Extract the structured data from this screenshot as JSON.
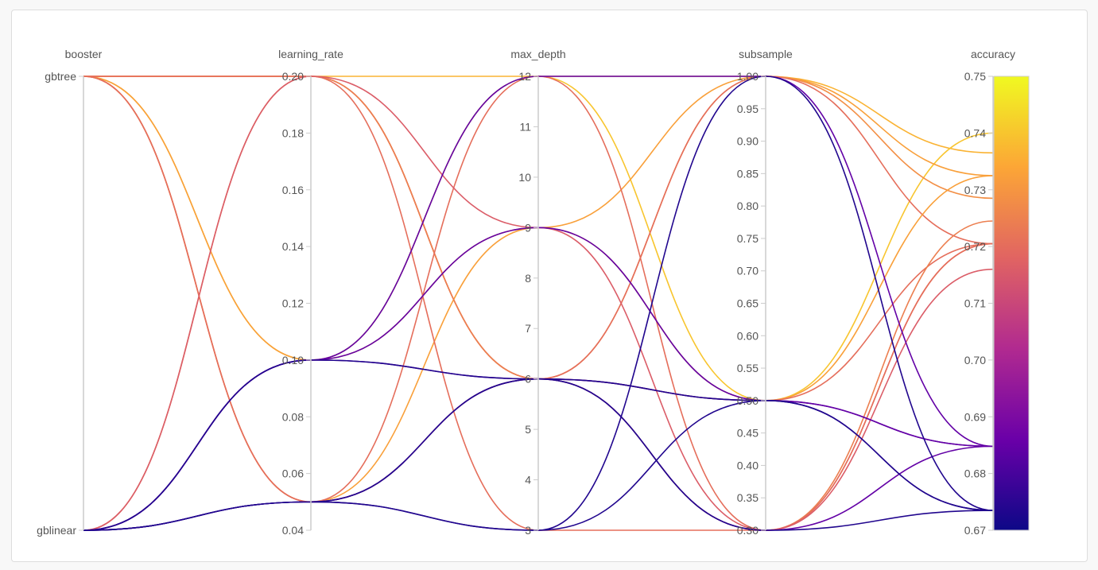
{
  "chart_data": {
    "type": "parallel_coordinates",
    "axes": [
      {
        "name": "booster",
        "type": "categorical",
        "categories": [
          "gbtree",
          "gblinear"
        ]
      },
      {
        "name": "learning_rate",
        "type": "numeric",
        "range": [
          0.04,
          0.2
        ],
        "ticks": [
          "0.04",
          "0.06",
          "0.08",
          "0.10",
          "0.12",
          "0.14",
          "0.16",
          "0.18",
          "0.20"
        ]
      },
      {
        "name": "max_depth",
        "type": "numeric",
        "range": [
          3,
          12
        ],
        "ticks": [
          "3",
          "4",
          "5",
          "6",
          "7",
          "8",
          "9",
          "10",
          "11",
          "12"
        ]
      },
      {
        "name": "subsample",
        "type": "numeric",
        "range": [
          0.3,
          1.0
        ],
        "ticks": [
          "0.30",
          "0.35",
          "0.40",
          "0.45",
          "0.50",
          "0.55",
          "0.60",
          "0.65",
          "0.70",
          "0.75",
          "0.80",
          "0.85",
          "0.90",
          "0.95",
          "1.00"
        ]
      },
      {
        "name": "accuracy",
        "type": "numeric",
        "range": [
          0.67,
          0.75
        ],
        "ticks": [
          "0.67",
          "0.68",
          "0.69",
          "0.70",
          "0.71",
          "0.72",
          "0.73",
          "0.74",
          "0.75"
        ]
      }
    ],
    "color_by": "accuracy",
    "colorscale": "plasma",
    "colorscale_colors": [
      "#0d0887",
      "#6a00a8",
      "#b12a90",
      "#e16462",
      "#fca636",
      "#f0f921"
    ],
    "runs": [
      [
        "gbtree",
        0.2,
        12,
        1.0,
        0.7365
      ],
      [
        "gbtree",
        0.1,
        12,
        0.5,
        0.74
      ],
      [
        "gbtree",
        0.1,
        9,
        1.0,
        0.7325
      ],
      [
        "gbtree",
        0.2,
        6,
        1.0,
        0.7285
      ],
      [
        "gbtree",
        0.2,
        6,
        1.0,
        0.7205
      ],
      [
        "gbtree",
        0.05,
        9,
        0.5,
        0.7325
      ],
      [
        "gbtree",
        0.05,
        6,
        0.5,
        0.7205
      ],
      [
        "gblinear",
        0.2,
        6,
        0.3,
        0.7245
      ],
      [
        "gbtree",
        0.2,
        3,
        0.3,
        0.7205
      ],
      [
        "gbtree",
        0.05,
        12,
        0.3,
        0.7205
      ],
      [
        "gblinear",
        0.2,
        9,
        0.3,
        0.716
      ],
      [
        "gblinear",
        0.1,
        12,
        1.0,
        0.6848
      ],
      [
        "gblinear",
        0.1,
        9,
        0.5,
        0.6848
      ],
      [
        "gblinear",
        0.1,
        6,
        0.5,
        0.6848
      ],
      [
        "gblinear",
        0.05,
        6,
        0.3,
        0.6848
      ],
      [
        "gblinear",
        0.05,
        3,
        1.0,
        0.6735
      ],
      [
        "gblinear",
        0.05,
        3,
        0.5,
        0.6735
      ],
      [
        "gblinear",
        0.1,
        6,
        0.5,
        0.6735
      ],
      [
        "gblinear",
        0.05,
        6,
        0.3,
        0.6735
      ]
    ]
  }
}
